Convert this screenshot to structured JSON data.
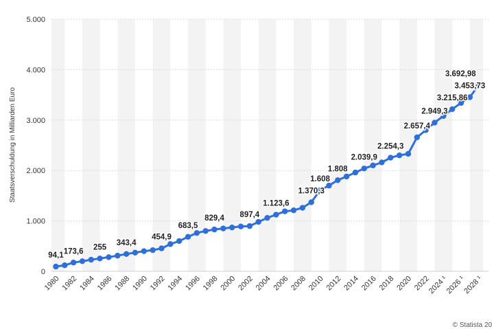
{
  "chart_data": {
    "type": "line",
    "title": "",
    "xlabel": "",
    "ylabel": "Staatsverschuldung in Milliarden Euro",
    "ylim": [
      0,
      5000
    ],
    "y_ticks": [
      0,
      1000,
      2000,
      3000,
      4000,
      5000
    ],
    "y_tick_labels": [
      "0",
      "1.000",
      "2.000",
      "3.000",
      "4.000",
      "5.000"
    ],
    "x_tick_labels": [
      "1980",
      "1982",
      "1984",
      "1986",
      "1988",
      "1990",
      "1992",
      "1994",
      "1996",
      "1998",
      "2000",
      "2002",
      "2004",
      "2006",
      "2008",
      "2010",
      "2012",
      "2014",
      "2016",
      "2018",
      "2020",
      "2022",
      "2024 ¹",
      "2026 ¹",
      "2028 ¹"
    ],
    "grid": true,
    "line_color": "#2f6fd8",
    "series": [
      {
        "name": "Staatsverschuldung",
        "x": [
          1980,
          1981,
          1982,
          1983,
          1984,
          1985,
          1986,
          1987,
          1988,
          1989,
          1990,
          1991,
          1992,
          1993,
          1994,
          1995,
          1996,
          1997,
          1998,
          1999,
          2000,
          2001,
          2002,
          2003,
          2004,
          2005,
          2006,
          2007,
          2008,
          2009,
          2010,
          2011,
          2012,
          2013,
          2014,
          2015,
          2016,
          2017,
          2018,
          2019,
          2020,
          2021,
          2022,
          2023,
          2024,
          2025,
          2026,
          2027,
          2028
        ],
        "values": [
          94.1,
          120,
          173.6,
          200,
          230,
          255,
          280,
          310,
          343.4,
          370,
          400,
          420,
          454.9,
          540,
          600,
          683.5,
          760,
          800,
          829.4,
          850,
          870,
          890,
          897.4,
          980,
          1060,
          1123.6,
          1190,
          1210,
          1260,
          1370.3,
          1608,
          1700,
          1808,
          1880,
          1960,
          2039.9,
          2100,
          2160,
          2254.3,
          2300,
          2330,
          2657.4,
          2800,
          2949.3,
          3080,
          3215.86,
          3340,
          3453.73,
          3692.98
        ]
      }
    ],
    "data_labels": [
      {
        "x": 1980,
        "text": "94,1"
      },
      {
        "x": 1982,
        "text": "173,6"
      },
      {
        "x": 1985,
        "text": "255"
      },
      {
        "x": 1988,
        "text": "343,4"
      },
      {
        "x": 1992,
        "text": "454,9"
      },
      {
        "x": 1995,
        "text": "683,5"
      },
      {
        "x": 1998,
        "text": "829,4"
      },
      {
        "x": 2002,
        "text": "897,4"
      },
      {
        "x": 2005,
        "text": "1.123,6"
      },
      {
        "x": 2009,
        "text": "1.370,3"
      },
      {
        "x": 2010,
        "text": "1.608"
      },
      {
        "x": 2012,
        "text": "1.808"
      },
      {
        "x": 2015,
        "text": "2.039,9"
      },
      {
        "x": 2018,
        "text": "2.254,3"
      },
      {
        "x": 2021,
        "text": "2.657,4"
      },
      {
        "x": 2023,
        "text": "2.949,3"
      },
      {
        "x": 2025,
        "text": "3.215,86"
      },
      {
        "x": 2027,
        "text": "3.453,73"
      },
      {
        "x": 2028,
        "text": "3.692,98"
      }
    ]
  },
  "footer": {
    "source_text": "© Statista 20"
  }
}
